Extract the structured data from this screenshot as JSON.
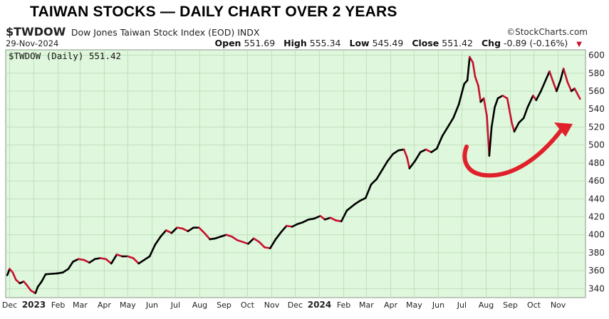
{
  "banner": "TAIWAN STOCKS — DAILY CHART OVER 2 YEARS",
  "header": {
    "symbol": "$TWDOW",
    "description": "Dow Jones Taiwan Stock Index (EOD)  INDX",
    "brand": "©StockCharts.com",
    "date": "29-Nov-2024",
    "open_label": "Open",
    "open": "551.69",
    "high_label": "High",
    "high": "555.34",
    "low_label": "Low",
    "low": "545.49",
    "close_label": "Close",
    "close": "551.42",
    "chg_label": "Chg",
    "chg": "-0.89 (-0.16%)"
  },
  "colors": {
    "background": "#dff7dc",
    "grid": "#bfe0bc",
    "up": "#000000",
    "down": "#c8102e",
    "annotation": "#e0202a"
  },
  "chart_data": {
    "type": "line",
    "legend": "$TWDOW (Daily) 551.42",
    "title": "",
    "xlabel": "",
    "ylabel": "",
    "ylim": [
      330,
      606
    ],
    "yticks": [
      340,
      360,
      380,
      400,
      420,
      440,
      460,
      480,
      500,
      520,
      540,
      560,
      580,
      600
    ],
    "xticks": [
      {
        "label": "Dec",
        "x": "2022-12-01",
        "bold": false
      },
      {
        "label": "2023",
        "x": "2023-01-01",
        "bold": true
      },
      {
        "label": "Feb",
        "x": "2023-02-01",
        "bold": false
      },
      {
        "label": "Mar",
        "x": "2023-03-01",
        "bold": false
      },
      {
        "label": "Apr",
        "x": "2023-04-01",
        "bold": false
      },
      {
        "label": "May",
        "x": "2023-05-01",
        "bold": false
      },
      {
        "label": "Jun",
        "x": "2023-06-01",
        "bold": false
      },
      {
        "label": "Jul",
        "x": "2023-07-01",
        "bold": false
      },
      {
        "label": "Aug",
        "x": "2023-08-01",
        "bold": false
      },
      {
        "label": "Sep",
        "x": "2023-09-01",
        "bold": false
      },
      {
        "label": "Oct",
        "x": "2023-10-01",
        "bold": false
      },
      {
        "label": "Nov",
        "x": "2023-11-01",
        "bold": false
      },
      {
        "label": "Dec",
        "x": "2023-12-01",
        "bold": false
      },
      {
        "label": "2024",
        "x": "2024-01-01",
        "bold": true
      },
      {
        "label": "Feb",
        "x": "2024-02-01",
        "bold": false
      },
      {
        "label": "Mar",
        "x": "2024-03-01",
        "bold": false
      },
      {
        "label": "Apr",
        "x": "2024-04-01",
        "bold": false
      },
      {
        "label": "May",
        "x": "2024-05-01",
        "bold": false
      },
      {
        "label": "Jun",
        "x": "2024-06-01",
        "bold": false
      },
      {
        "label": "Jul",
        "x": "2024-07-01",
        "bold": false
      },
      {
        "label": "Aug",
        "x": "2024-08-01",
        "bold": false
      },
      {
        "label": "Sep",
        "x": "2024-09-01",
        "bold": false
      },
      {
        "label": "Oct",
        "x": "2024-10-01",
        "bold": false
      },
      {
        "label": "Nov",
        "x": "2024-11-01",
        "bold": false
      }
    ],
    "xrange": [
      "2022-11-26",
      "2024-12-06"
    ],
    "grid": true,
    "legend_position": "top-left",
    "series": [
      {
        "name": "$TWDOW",
        "points": [
          [
            "2022-11-28",
            355
          ],
          [
            "2022-12-01",
            362
          ],
          [
            "2022-12-05",
            358
          ],
          [
            "2022-12-09",
            350
          ],
          [
            "2022-12-14",
            346
          ],
          [
            "2022-12-19",
            348
          ],
          [
            "2022-12-23",
            344
          ],
          [
            "2022-12-28",
            338
          ],
          [
            "2023-01-03",
            335
          ],
          [
            "2023-01-06",
            342
          ],
          [
            "2023-01-11",
            348
          ],
          [
            "2023-01-16",
            356
          ],
          [
            "2023-01-31",
            357
          ],
          [
            "2023-02-07",
            358
          ],
          [
            "2023-02-14",
            362
          ],
          [
            "2023-02-20",
            370
          ],
          [
            "2023-02-27",
            373
          ],
          [
            "2023-03-06",
            372
          ],
          [
            "2023-03-13",
            369
          ],
          [
            "2023-03-20",
            373
          ],
          [
            "2023-03-27",
            374
          ],
          [
            "2023-04-03",
            373
          ],
          [
            "2023-04-10",
            368
          ],
          [
            "2023-04-17",
            378
          ],
          [
            "2023-04-24",
            376
          ],
          [
            "2023-05-01",
            376
          ],
          [
            "2023-05-08",
            374
          ],
          [
            "2023-05-15",
            368
          ],
          [
            "2023-05-22",
            372
          ],
          [
            "2023-05-29",
            376
          ],
          [
            "2023-06-05",
            389
          ],
          [
            "2023-06-12",
            398
          ],
          [
            "2023-06-19",
            405
          ],
          [
            "2023-06-26",
            402
          ],
          [
            "2023-07-03",
            408
          ],
          [
            "2023-07-10",
            407
          ],
          [
            "2023-07-17",
            404
          ],
          [
            "2023-07-24",
            408
          ],
          [
            "2023-07-31",
            408
          ],
          [
            "2023-08-07",
            402
          ],
          [
            "2023-08-14",
            395
          ],
          [
            "2023-08-21",
            396
          ],
          [
            "2023-08-28",
            398
          ],
          [
            "2023-09-04",
            400
          ],
          [
            "2023-09-11",
            398
          ],
          [
            "2023-09-18",
            394
          ],
          [
            "2023-09-25",
            392
          ],
          [
            "2023-10-02",
            390
          ],
          [
            "2023-10-09",
            396
          ],
          [
            "2023-10-16",
            392
          ],
          [
            "2023-10-23",
            386
          ],
          [
            "2023-10-30",
            385
          ],
          [
            "2023-11-06",
            395
          ],
          [
            "2023-11-13",
            403
          ],
          [
            "2023-11-20",
            410
          ],
          [
            "2023-11-27",
            409
          ],
          [
            "2023-12-04",
            412
          ],
          [
            "2023-12-11",
            414
          ],
          [
            "2023-12-18",
            417
          ],
          [
            "2023-12-25",
            418
          ],
          [
            "2024-01-02",
            421
          ],
          [
            "2024-01-08",
            417
          ],
          [
            "2024-01-15",
            419
          ],
          [
            "2024-01-22",
            416
          ],
          [
            "2024-01-29",
            415
          ],
          [
            "2024-02-05",
            427
          ],
          [
            "2024-02-15",
            434
          ],
          [
            "2024-02-22",
            438
          ],
          [
            "2024-02-29",
            441
          ],
          [
            "2024-03-07",
            456
          ],
          [
            "2024-03-14",
            462
          ],
          [
            "2024-03-21",
            472
          ],
          [
            "2024-03-28",
            482
          ],
          [
            "2024-04-04",
            490
          ],
          [
            "2024-04-11",
            494
          ],
          [
            "2024-04-18",
            495
          ],
          [
            "2024-04-22",
            486
          ],
          [
            "2024-04-25",
            474
          ],
          [
            "2024-05-02",
            482
          ],
          [
            "2024-05-09",
            492
          ],
          [
            "2024-05-16",
            495
          ],
          [
            "2024-05-23",
            492
          ],
          [
            "2024-05-30",
            496
          ],
          [
            "2024-06-06",
            510
          ],
          [
            "2024-06-13",
            520
          ],
          [
            "2024-06-20",
            530
          ],
          [
            "2024-06-27",
            545
          ],
          [
            "2024-07-04",
            568
          ],
          [
            "2024-07-08",
            572
          ],
          [
            "2024-07-11",
            598
          ],
          [
            "2024-07-15",
            592
          ],
          [
            "2024-07-18",
            576
          ],
          [
            "2024-07-22",
            566
          ],
          [
            "2024-07-25",
            548
          ],
          [
            "2024-07-29",
            552
          ],
          [
            "2024-08-02",
            532
          ],
          [
            "2024-08-05",
            488
          ],
          [
            "2024-08-08",
            520
          ],
          [
            "2024-08-12",
            542
          ],
          [
            "2024-08-16",
            552
          ],
          [
            "2024-08-22",
            555
          ],
          [
            "2024-08-28",
            552
          ],
          [
            "2024-09-03",
            524
          ],
          [
            "2024-09-06",
            515
          ],
          [
            "2024-09-12",
            525
          ],
          [
            "2024-09-18",
            530
          ],
          [
            "2024-09-23",
            542
          ],
          [
            "2024-09-30",
            555
          ],
          [
            "2024-10-04",
            550
          ],
          [
            "2024-10-10",
            560
          ],
          [
            "2024-10-16",
            572
          ],
          [
            "2024-10-21",
            582
          ],
          [
            "2024-10-25",
            572
          ],
          [
            "2024-10-30",
            560
          ],
          [
            "2024-11-04",
            572
          ],
          [
            "2024-11-08",
            585
          ],
          [
            "2024-11-13",
            570
          ],
          [
            "2024-11-18",
            560
          ],
          [
            "2024-11-22",
            563
          ],
          [
            "2024-11-29",
            551.42
          ]
        ]
      }
    ]
  }
}
